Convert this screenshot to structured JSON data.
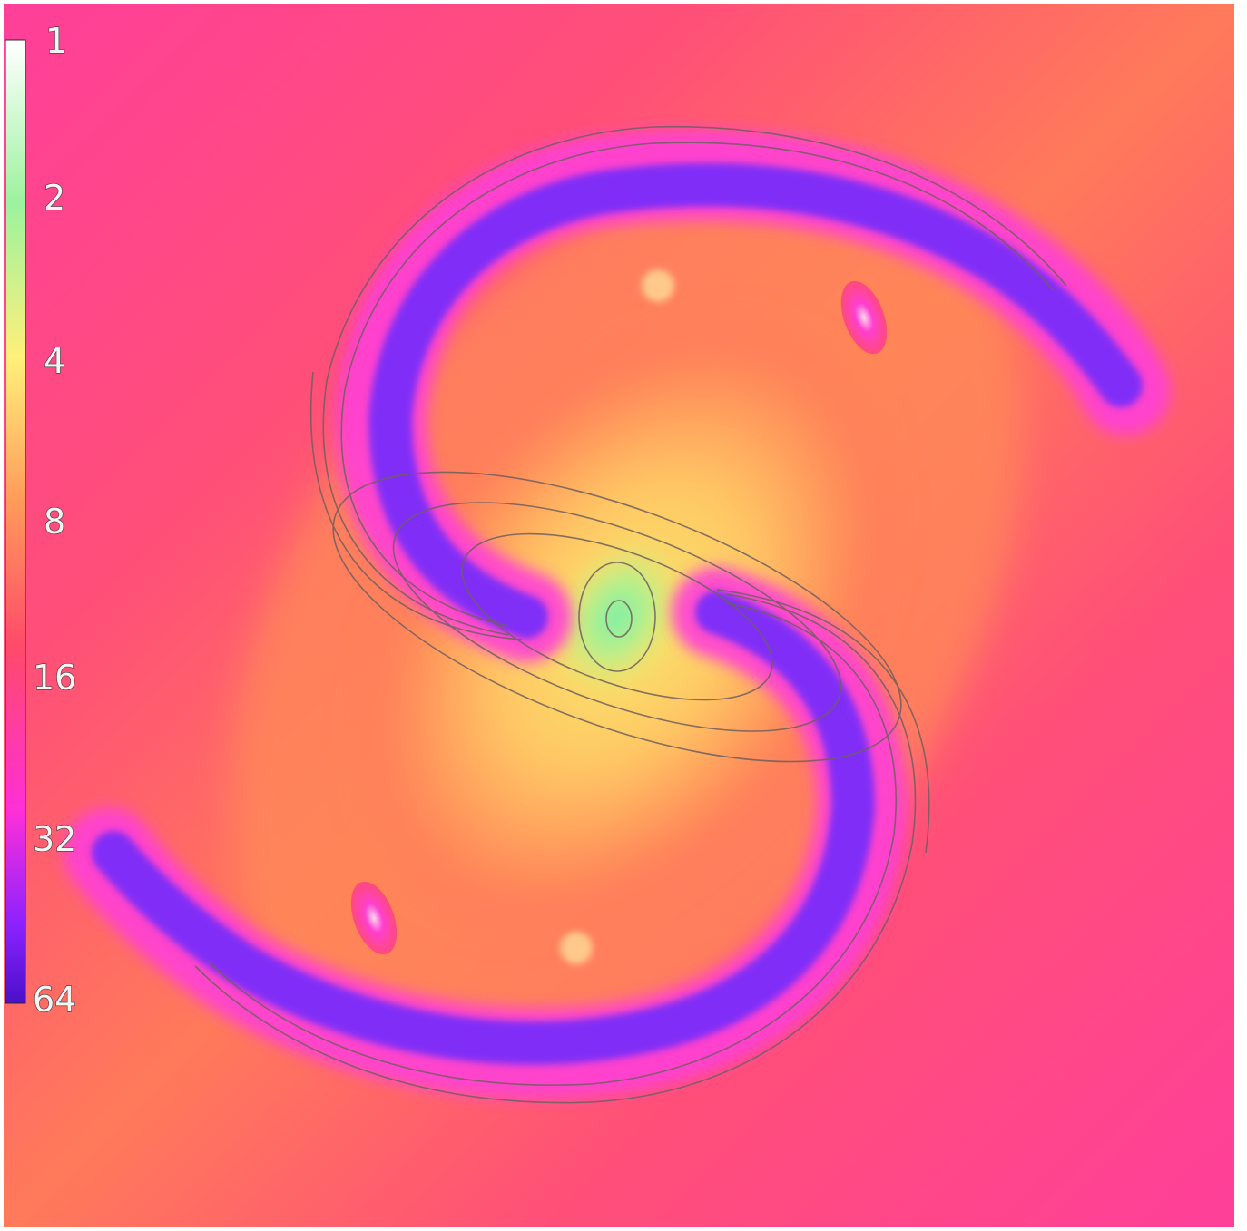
{
  "image": {
    "description_type": "simulated-galaxy-map",
    "colorbar": {
      "ticks": [
        "1",
        "2",
        "4",
        "8",
        "16",
        "32",
        "64"
      ],
      "colors": [
        "#ffffff",
        "#9cf29e",
        "#fff07a",
        "#ff9a5a",
        "#ff4a6a",
        "#ff2fd8",
        "#6a22ff",
        "#4a10c8"
      ]
    },
    "palette": {
      "background": "#ffffff",
      "outer_field": "#ff3f9a",
      "mid_field": "#ff6a5a",
      "disk_field": "#ffb25e",
      "core": "#f6e46a",
      "center": "#8ff09a",
      "arm_edge": "#d14cff",
      "arm_core": "#6a2cff",
      "contour": "#6f5f5f"
    }
  }
}
